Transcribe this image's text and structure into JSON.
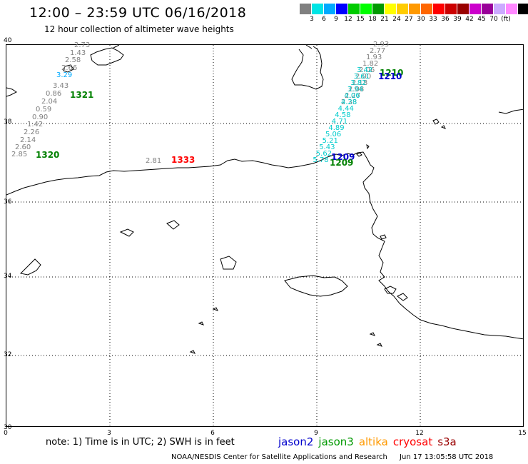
{
  "header": {
    "title": "12:00 – 23:59 UTC 06/16/2018",
    "subtitle": "12 hour collection of altimeter wave heights"
  },
  "colorbar": {
    "colors": [
      "#808080",
      "#00e5e5",
      "#00aaff",
      "#0000ff",
      "#00cc00",
      "#00ff00",
      "#009900",
      "#ffff00",
      "#ffcc00",
      "#ff9900",
      "#ff6600",
      "#ff0000",
      "#cc0000",
      "#990000",
      "#cc00cc",
      "#990099",
      "#ccaaff",
      "#ff88ff",
      "#000000"
    ],
    "labels": [
      "3",
      "6",
      "9",
      "12",
      "15",
      "18",
      "21",
      "24",
      "27",
      "30",
      "33",
      "36",
      "39",
      "42",
      "45",
      "70",
      "(ft)"
    ]
  },
  "axes": {
    "lat_labels": [
      "40",
      "38",
      "36",
      "34",
      "32",
      "30"
    ],
    "lon_labels": [
      "0",
      "3",
      "6",
      "9",
      "12",
      "15"
    ]
  },
  "tracks": {
    "west_values": [
      {
        "v": "2.73",
        "c": "#808080"
      },
      {
        "v": "1.43",
        "c": "#808080"
      },
      {
        "v": "2.58",
        "c": "#808080"
      },
      {
        "v": "2.66",
        "c": "#808080"
      },
      {
        "v": "3.29",
        "c": "#00aaff"
      },
      {
        "v": "3.43",
        "c": "#808080"
      },
      {
        "v": "0.86",
        "c": "#808080"
      },
      {
        "v": "2.04",
        "c": "#808080"
      },
      {
        "v": "0.59",
        "c": "#808080"
      },
      {
        "v": "0.90",
        "c": "#808080"
      },
      {
        "v": "1.42",
        "c": "#808080"
      },
      {
        "v": "2.26",
        "c": "#808080"
      },
      {
        "v": "2.14",
        "c": "#808080"
      },
      {
        "v": "2.60",
        "c": "#808080"
      },
      {
        "v": "2.85",
        "c": "#808080"
      }
    ],
    "coastal_value": "2.81",
    "east_gray": [
      "2.93",
      "2.77",
      "1.93",
      "1.82",
      "2.06",
      "2.00",
      "2.18",
      "2.08",
      "2.27",
      "2.38"
    ],
    "east_cyan": [
      "3.42",
      "3.61",
      "3.82",
      "3.94",
      "4.06",
      "4.28",
      "4.44",
      "4.58",
      "4.71",
      "4.89",
      "5.06",
      "5.21",
      "5.43",
      "5.62",
      "5.78"
    ],
    "time_tags": [
      {
        "t": "1321",
        "c": "#008000"
      },
      {
        "t": "1320",
        "c": "#008000"
      },
      {
        "t": "1333",
        "c": "#ff0000"
      },
      {
        "t": "1210",
        "c": "#008000"
      },
      {
        "t": "1210",
        "c": "#0000cc"
      },
      {
        "t": "1209",
        "c": "#0000cc"
      },
      {
        "t": "1209",
        "c": "#008000"
      }
    ]
  },
  "footer": {
    "note": "note: 1) Time is in UTC; 2) SWH is in feet",
    "legend": [
      {
        "name": "jason2",
        "color": "#0000cc"
      },
      {
        "name": "jason3",
        "color": "#009900"
      },
      {
        "name": "altika",
        "color": "#ff9900"
      },
      {
        "name": "cryosat",
        "color": "#ff0000"
      },
      {
        "name": "s3a",
        "color": "#990000"
      }
    ],
    "credit_org": "NOAA/NESDIS Center for Satellite Applications and Research",
    "credit_time": "Jun 17 13:05:58 UTC 2018"
  }
}
